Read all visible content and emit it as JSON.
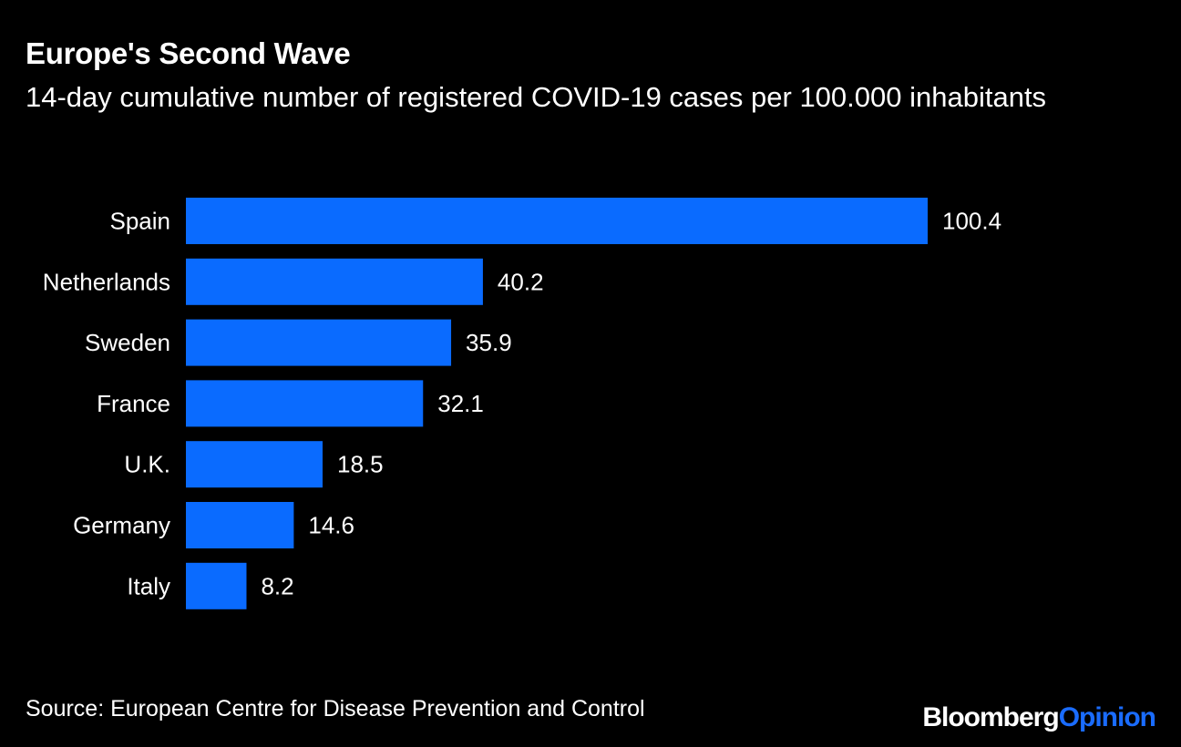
{
  "chart_data": {
    "type": "bar",
    "orientation": "horizontal",
    "title": "Europe's Second Wave",
    "subtitle": "14-day cumulative number of registered COVID-19 cases per 100.000 inhabitants",
    "categories": [
      "Spain",
      "Netherlands",
      "Sweden",
      "France",
      "U.K.",
      "Germany",
      "Italy"
    ],
    "values": [
      100.4,
      40.2,
      35.9,
      32.1,
      18.5,
      14.6,
      8.2
    ],
    "value_labels": [
      "100.4",
      "40.2",
      "35.9",
      "32.1",
      "18.5",
      "14.6",
      "8.2"
    ],
    "xlim": [
      0,
      100.4
    ],
    "grid": false,
    "bar_color": "#0a6bff",
    "background_color": "#000000"
  },
  "source": "Source: European Centre for Disease Prevention and Control",
  "branding": {
    "name": "Bloomberg",
    "suffix": "Opinion"
  }
}
